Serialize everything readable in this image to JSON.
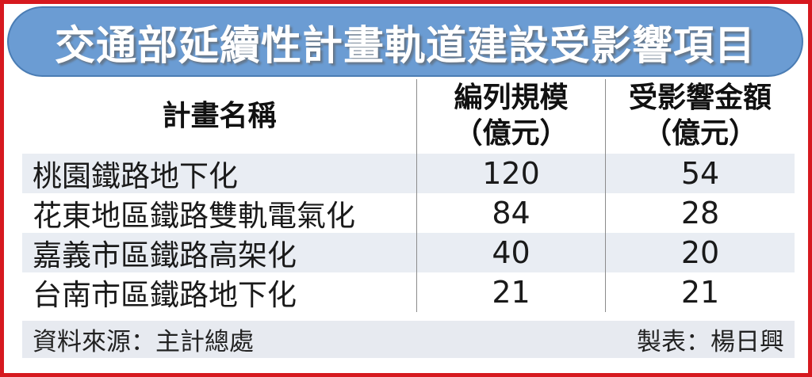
{
  "banner": {
    "title": "交通部延續性計畫軌道建設受影響項目",
    "bg_color": "#6b9cd3",
    "border_color": "#4b7db4",
    "text_color": "#ffffff"
  },
  "frame": {
    "border_color": "#d6191f"
  },
  "table": {
    "columns": [
      {
        "label": "計畫名稱"
      },
      {
        "line1": "編列規模",
        "line2": "（億元）"
      },
      {
        "line1": "受影響金額",
        "line2": "（億元）"
      }
    ],
    "rows": [
      {
        "name": "桃園鐵路地下化",
        "scale": "120",
        "affected": "54"
      },
      {
        "name": "花東地區鐵路雙軌電氣化",
        "scale": "84",
        "affected": "28"
      },
      {
        "name": "嘉義市區鐵路高架化",
        "scale": "40",
        "affected": "20"
      },
      {
        "name": "台南市區鐵路地下化",
        "scale": "21",
        "affected": "21"
      }
    ],
    "stripe_color": "#e9edf3"
  },
  "footer": {
    "source": "資料來源：主計總處",
    "credit": "製表：楊日興"
  },
  "chart_data": {
    "type": "table",
    "title": "交通部延續性計畫軌道建設受影響項目",
    "columns": [
      "計畫名稱",
      "編列規模（億元）",
      "受影響金額（億元）"
    ],
    "rows": [
      [
        "桃園鐵路地下化",
        120,
        54
      ],
      [
        "花東地區鐵路雙軌電氣化",
        84,
        28
      ],
      [
        "嘉義市區鐵路高架化",
        40,
        20
      ],
      [
        "台南市區鐵路地下化",
        21,
        21
      ]
    ],
    "source": "資料來源：主計總處",
    "credit": "製表：楊日興"
  }
}
